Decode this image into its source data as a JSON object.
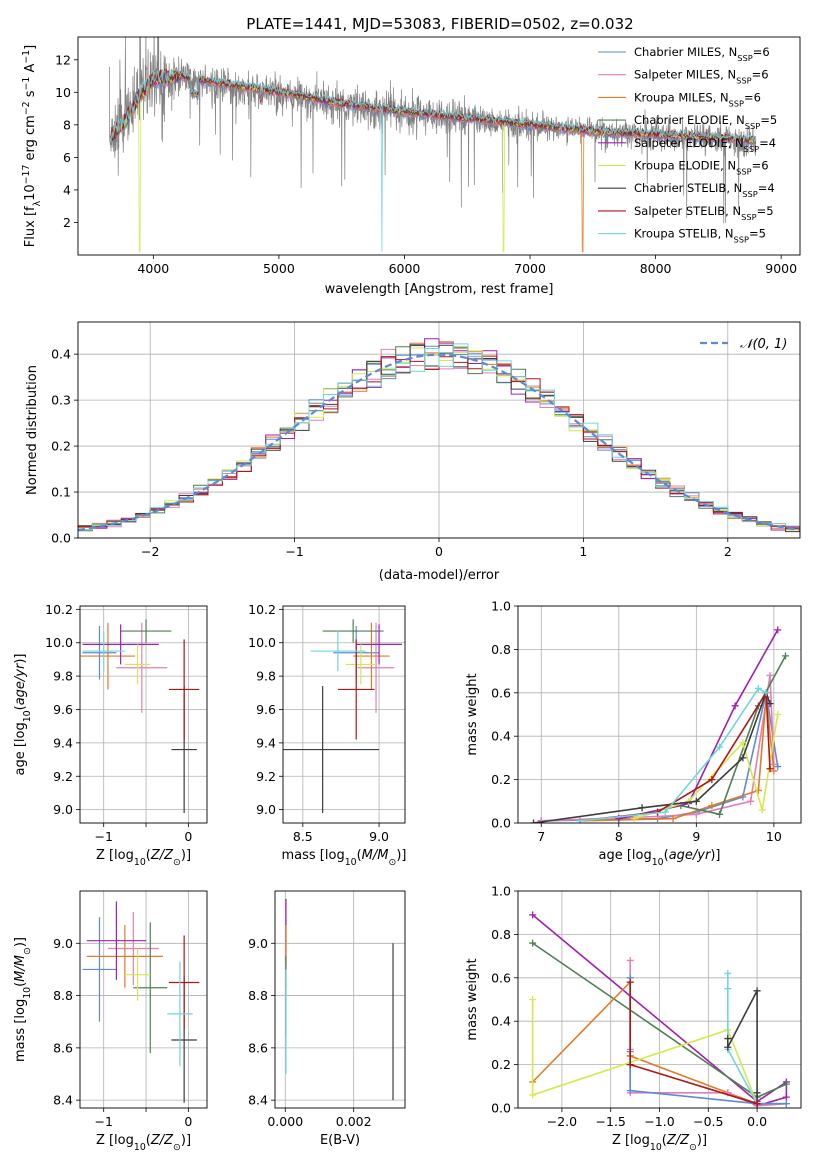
{
  "figure_title": "PLATE=1441, MJD=53083, FIBERID=0502, z=0.032",
  "colors": {
    "Chabrier MILES": "#5b8bd8",
    "Salpeter MILES": "#e37fb6",
    "Kroupa MILES": "#e07b2a",
    "Chabrier ELODIE": "#4f7f54",
    "Salpeter ELODIE": "#a020b0",
    "Kroupa ELODIE": "#d6e84a",
    "Chabrier STELIB": "#3c3c3c",
    "Salpeter STELIB": "#b01515",
    "Kroupa STELIB": "#6ed6de",
    "gaussian": "#5b8bd8"
  },
  "chart_data": [
    {
      "id": "spectrum",
      "type": "line",
      "xlabel": "wavelength [Angstrom, rest frame]",
      "ylabel": "Flux [fλ10⁻¹⁷ erg cm⁻² s⁻¹ A⁻¹]",
      "xlim": [
        3400,
        9150
      ],
      "ylim": [
        0,
        13.4
      ],
      "xticks": [
        4000,
        5000,
        6000,
        7000,
        8000,
        9000
      ],
      "yticks": [
        2,
        4,
        6,
        8,
        10,
        12
      ],
      "legend_position": "top-right",
      "legend": [
        {
          "name": "Chabrier MILES",
          "lib": "MILES",
          "n": "6"
        },
        {
          "name": "Salpeter MILES",
          "lib": "MILES",
          "n": "6"
        },
        {
          "name": "Kroupa MILES",
          "lib": "MILES",
          "n": "6"
        },
        {
          "name": "Chabrier ELODIE",
          "lib": "ELODIE",
          "n": "5"
        },
        {
          "name": "Salpeter ELODIE",
          "lib": "ELODIE",
          "n": "4"
        },
        {
          "name": "Kroupa ELODIE",
          "lib": "ELODIE",
          "n": "6"
        },
        {
          "name": "Chabrier STELIB",
          "lib": "STELIB",
          "n": "4"
        },
        {
          "name": "Salpeter STELIB",
          "lib": "STELIB",
          "n": "5"
        },
        {
          "name": "Kroupa STELIB",
          "lib": "STELIB",
          "n": "5"
        }
      ],
      "data_continuum": {
        "x": [
          3650,
          3800,
          3900,
          4000,
          4200,
          4500,
          5000,
          5500,
          6000,
          6500,
          7000,
          7500,
          8000,
          8500,
          8800
        ],
        "y": [
          7.2,
          8.6,
          10.0,
          10.6,
          10.9,
          10.5,
          9.9,
          9.2,
          8.7,
          8.3,
          8.0,
          7.6,
          7.4,
          7.1,
          6.9
        ]
      },
      "model_continuum": {
        "x": [
          3650,
          3800,
          3900,
          4000,
          4200,
          4500,
          5000,
          5500,
          6000,
          6500,
          7000,
          7500,
          8000,
          8500,
          8800
        ],
        "y": [
          7.1,
          8.5,
          9.9,
          10.8,
          11.0,
          10.6,
          10.0,
          9.3,
          8.8,
          8.4,
          8.0,
          7.6,
          7.4,
          7.2,
          7.0
        ]
      },
      "model_dropouts": [
        {
          "series": "Kroupa ELODIE",
          "x": 3890,
          "y": 0.2
        },
        {
          "series": "Kroupa STELIB",
          "x": 5820,
          "y": 0.2
        },
        {
          "series": "Kroupa ELODIE",
          "x": 6790,
          "y": 0.2
        },
        {
          "series": "Kroupa MILES",
          "x": 7420,
          "y": 0.2
        }
      ]
    },
    {
      "id": "residuals",
      "type": "histogram",
      "xlabel": "(data-model)/error",
      "ylabel": "Normed distribution",
      "xlim": [
        -2.5,
        2.5
      ],
      "ylim": [
        0,
        0.47
      ],
      "xticks": [
        -2,
        -1,
        0,
        1,
        2
      ],
      "yticks": [
        0.0,
        0.1,
        0.2,
        0.3,
        0.4
      ],
      "grid": true,
      "legend_position": "top-right",
      "gaussian_label": "𝒩(0, 1)",
      "bin_width": 0.1
    },
    {
      "id": "age_vs_Z",
      "type": "errorbar",
      "xlabel": "Z [log₁₀(Z/Z⊙)]",
      "ylabel": "age  [log₁₀(age/yr)]",
      "xlim": [
        -1.28,
        0.22
      ],
      "ylim": [
        8.92,
        10.22
      ],
      "xticks": [
        -1,
        -0.5,
        0
      ],
      "xticklabels": [
        "−1",
        "",
        "0"
      ],
      "yticks": [
        9.0,
        9.2,
        9.4,
        9.6,
        9.8,
        10.0,
        10.2
      ],
      "points": [
        {
          "series": "Chabrier MILES",
          "x": -1.05,
          "xerr": 0.2,
          "y": 9.94,
          "yerr": 0.16
        },
        {
          "series": "Salpeter MILES",
          "x": -0.55,
          "xerr": 0.3,
          "y": 9.85,
          "yerr": 0.27
        },
        {
          "series": "Kroupa MILES",
          "x": -0.95,
          "xerr": 0.32,
          "y": 9.92,
          "yerr": 0.2
        },
        {
          "series": "Chabrier ELODIE",
          "x": -0.5,
          "xerr": 0.3,
          "y": 10.07,
          "yerr": 0.07
        },
        {
          "series": "Salpeter ELODIE",
          "x": -0.8,
          "xerr": 0.45,
          "y": 9.99,
          "yerr": 0.12
        },
        {
          "series": "Kroupa ELODIE",
          "x": -0.6,
          "xerr": 0.15,
          "y": 9.87,
          "yerr": 0.12
        },
        {
          "series": "Chabrier STELIB",
          "x": -0.05,
          "xerr": 0.15,
          "y": 9.36,
          "yerr": 0.38
        },
        {
          "series": "Salpeter STELIB",
          "x": -0.05,
          "xerr": 0.18,
          "y": 9.72,
          "yerr": 0.3
        },
        {
          "series": "Kroupa STELIB",
          "x": -1.0,
          "xerr": 0.25,
          "y": 9.95,
          "yerr": 0.12
        }
      ]
    },
    {
      "id": "age_vs_mass",
      "type": "errorbar",
      "xlabel": "mass [log₁₀(M/M⊙)]",
      "ylabel": "",
      "xlim": [
        8.37,
        9.17
      ],
      "ylim": [
        8.92,
        10.22
      ],
      "xticks": [
        8.5,
        9.0
      ],
      "yticks": [
        9.0,
        9.2,
        9.4,
        9.6,
        9.8,
        10.0,
        10.2
      ],
      "points": [
        {
          "series": "Chabrier MILES",
          "x": 8.85,
          "xerr": 0.15,
          "y": 9.94,
          "yerr": 0.16
        },
        {
          "series": "Salpeter MILES",
          "x": 8.98,
          "xerr": 0.12,
          "y": 9.85,
          "yerr": 0.27
        },
        {
          "series": "Kroupa MILES",
          "x": 8.95,
          "xerr": 0.12,
          "y": 9.92,
          "yerr": 0.2
        },
        {
          "series": "Chabrier ELODIE",
          "x": 8.83,
          "xerr": 0.2,
          "y": 10.07,
          "yerr": 0.07
        },
        {
          "series": "Salpeter ELODIE",
          "x": 9.0,
          "xerr": 0.15,
          "y": 9.99,
          "yerr": 0.12
        },
        {
          "series": "Kroupa ELODIE",
          "x": 8.88,
          "xerr": 0.1,
          "y": 9.87,
          "yerr": 0.12
        },
        {
          "series": "Chabrier STELIB",
          "x": 8.63,
          "xerr": 0.37,
          "y": 9.36,
          "yerr": 0.38
        },
        {
          "series": "Salpeter STELIB",
          "x": 8.85,
          "xerr": 0.12,
          "y": 9.72,
          "yerr": 0.3
        },
        {
          "series": "Kroupa STELIB",
          "x": 8.73,
          "xerr": 0.18,
          "y": 9.95,
          "yerr": 0.12
        }
      ]
    },
    {
      "id": "mass_weight_vs_age",
      "type": "line",
      "xlabel": "age  [log₁₀(age/yr)]",
      "ylabel": "mass weight",
      "xlim": [
        6.7,
        10.35
      ],
      "ylim": [
        0,
        1.0
      ],
      "xticks": [
        7,
        8,
        9,
        10
      ],
      "yticks": [
        0.0,
        0.2,
        0.4,
        0.6,
        0.8,
        1.0
      ],
      "grid": true,
      "series": [
        {
          "name": "Chabrier MILES",
          "x": [
            7.0,
            8.5,
            9.0,
            9.6,
            9.9,
            10.05
          ],
          "y": [
            0.01,
            0.02,
            0.05,
            0.12,
            0.6,
            0.26
          ]
        },
        {
          "name": "Salpeter MILES",
          "x": [
            7.0,
            8.5,
            9.0,
            9.7,
            9.95,
            10.0
          ],
          "y": [
            0.01,
            0.03,
            0.04,
            0.1,
            0.68,
            0.27
          ]
        },
        {
          "name": "Kroupa MILES",
          "x": [
            7.5,
            8.7,
            9.2,
            9.8,
            9.9,
            10.0
          ],
          "y": [
            0.01,
            0.02,
            0.08,
            0.15,
            0.58,
            0.24
          ]
        },
        {
          "name": "Chabrier ELODIE",
          "x": [
            8.0,
            8.8,
            9.3,
            9.8,
            10.15
          ],
          "y": [
            0.02,
            0.08,
            0.04,
            0.54,
            0.77
          ]
        },
        {
          "name": "Salpeter ELODIE",
          "x": [
            8.0,
            8.9,
            9.5,
            10.05
          ],
          "y": [
            0.02,
            0.09,
            0.54,
            0.89
          ]
        },
        {
          "name": "Kroupa ELODIE",
          "x": [
            8.2,
            8.9,
            9.6,
            9.85,
            10.05
          ],
          "y": [
            0.02,
            0.1,
            0.37,
            0.06,
            0.5
          ]
        },
        {
          "name": "Chabrier STELIB",
          "x": [
            6.9,
            8.3,
            9.0,
            9.6,
            9.9,
            9.95
          ],
          "y": [
            0.0,
            0.07,
            0.1,
            0.3,
            0.6,
            0.55
          ]
        },
        {
          "name": "Salpeter STELIB",
          "x": [
            7.5,
            8.5,
            9.2,
            9.9,
            9.95
          ],
          "y": [
            0.01,
            0.05,
            0.2,
            0.6,
            0.25
          ]
        },
        {
          "name": "Kroupa STELIB",
          "x": [
            7.5,
            8.6,
            9.3,
            9.8,
            9.9
          ],
          "y": [
            0.01,
            0.05,
            0.35,
            0.62,
            0.6
          ]
        }
      ]
    },
    {
      "id": "mass_vs_Z",
      "type": "errorbar",
      "xlabel": "Z [log₁₀(Z/Z⊙)]",
      "ylabel": "mass [log₁₀(M/M⊙)]",
      "xlim": [
        -1.28,
        0.22
      ],
      "ylim": [
        8.37,
        9.2
      ],
      "xticks": [
        -1,
        -0.5,
        0
      ],
      "xticklabels": [
        "−1",
        "",
        "0"
      ],
      "yticks": [
        8.4,
        8.6,
        8.8,
        9.0
      ],
      "points": [
        {
          "series": "Chabrier MILES",
          "x": -1.05,
          "xerr": 0.2,
          "y": 8.9,
          "yerr": 0.2
        },
        {
          "series": "Salpeter MILES",
          "x": -0.65,
          "xerr": 0.3,
          "y": 8.98,
          "yerr": 0.14
        },
        {
          "series": "Kroupa MILES",
          "x": -0.75,
          "xerr": 0.45,
          "y": 8.95,
          "yerr": 0.12
        },
        {
          "series": "Chabrier ELODIE",
          "x": -0.45,
          "xerr": 0.2,
          "y": 8.83,
          "yerr": 0.25
        },
        {
          "series": "Salpeter ELODIE",
          "x": -0.85,
          "xerr": 0.35,
          "y": 9.01,
          "yerr": 0.15
        },
        {
          "series": "Kroupa ELODIE",
          "x": -0.6,
          "xerr": 0.15,
          "y": 8.88,
          "yerr": 0.1
        },
        {
          "series": "Chabrier STELIB",
          "x": -0.05,
          "xerr": 0.15,
          "y": 8.63,
          "yerr": 0.24
        },
        {
          "series": "Salpeter STELIB",
          "x": -0.05,
          "xerr": 0.18,
          "y": 8.85,
          "yerr": 0.18
        },
        {
          "series": "Kroupa STELIB",
          "x": -0.1,
          "xerr": 0.15,
          "y": 8.73,
          "yerr": 0.2
        }
      ]
    },
    {
      "id": "mass_vs_ebv",
      "type": "errorbar",
      "xlabel": "E(B-V)",
      "ylabel": "",
      "xlim": [
        -0.0003,
        0.0035
      ],
      "ylim": [
        8.37,
        9.2
      ],
      "xticks": [
        0.0,
        0.002
      ],
      "xticklabels": [
        "0.000",
        "0.002"
      ],
      "yticks": [
        8.4,
        8.6,
        8.8,
        9.0
      ],
      "points": [
        {
          "series": "Salpeter ELODIE",
          "x": 2e-05,
          "xerr": 0,
          "y": 9.05,
          "yerr": 0.12
        },
        {
          "series": "Kroupa MILES",
          "x": 2e-05,
          "xerr": 0,
          "y": 8.95,
          "yerr": 0.12
        },
        {
          "series": "Chabrier ELODIE",
          "x": 2e-05,
          "xerr": 0,
          "y": 8.8,
          "yerr": 0.15
        },
        {
          "series": "Kroupa STELIB",
          "x": 2e-05,
          "xerr": 0,
          "y": 8.7,
          "yerr": 0.2
        },
        {
          "series": "Chabrier STELIB",
          "x": 0.00315,
          "xerr": 0,
          "y": 8.7,
          "yerr": 0.3
        }
      ]
    },
    {
      "id": "mass_weight_vs_Z",
      "type": "line",
      "xlabel": "Z [log₁₀(Z/Z⊙)]",
      "ylabel": "mass weight",
      "xlim": [
        -2.45,
        0.45
      ],
      "ylim": [
        0,
        1.0
      ],
      "xticks": [
        -2.0,
        -1.5,
        -1.0,
        -0.5,
        0.0
      ],
      "xticklabels": [
        "−2.0",
        "−1.5",
        "−1.0",
        "−0.5",
        "0.0"
      ],
      "yticks": [
        0.0,
        0.2,
        0.4,
        0.6,
        0.8,
        1.0
      ],
      "grid": true,
      "series": [
        {
          "name": "Salpeter ELODIE",
          "x": [
            -2.3,
            0.0,
            0.3,
            0.3,
            0.0
          ],
          "y": [
            0.89,
            0.03,
            0.12,
            0.05,
            0.01
          ]
        },
        {
          "name": "Chabrier ELODIE",
          "x": [
            -2.3,
            0.0,
            0.3
          ],
          "y": [
            0.76,
            0.05,
            0.11
          ]
        },
        {
          "name": "Kroupa MILES",
          "x": [
            -2.3,
            -1.3,
            -1.3,
            -1.3,
            -0.3,
            0.0
          ],
          "y": [
            0.12,
            0.58,
            0.24,
            0.24,
            0.07,
            0.02
          ]
        },
        {
          "name": "Kroupa ELODIE",
          "x": [
            -2.3,
            -2.3,
            -0.3,
            0.0,
            0.3
          ],
          "y": [
            0.5,
            0.06,
            0.36,
            0.02,
            0.02
          ]
        },
        {
          "name": "Salpeter MILES",
          "x": [
            -1.3,
            -1.3,
            -1.3,
            -0.3,
            0.0,
            0.3
          ],
          "y": [
            0.68,
            0.27,
            0.07,
            0.07,
            0.01,
            0.02
          ]
        },
        {
          "name": "Chabrier MILES",
          "x": [
            -1.3,
            -1.3,
            -1.3,
            0.0,
            0.3
          ],
          "y": [
            0.6,
            0.26,
            0.08,
            0.02,
            0.02
          ]
        },
        {
          "name": "Kroupa STELIB",
          "x": [
            -0.3,
            -0.3,
            -0.3,
            0.0
          ],
          "y": [
            0.62,
            0.55,
            0.27,
            0.02
          ]
        },
        {
          "name": "Chabrier STELIB",
          "x": [
            -0.3,
            -0.3,
            0.0,
            0.0,
            0.0
          ],
          "y": [
            0.32,
            0.28,
            0.54,
            0.07,
            0.02
          ]
        },
        {
          "name": "Salpeter STELIB",
          "x": [
            -1.3,
            -1.3,
            0.0
          ],
          "y": [
            0.58,
            0.2,
            0.02
          ]
        }
      ]
    }
  ]
}
